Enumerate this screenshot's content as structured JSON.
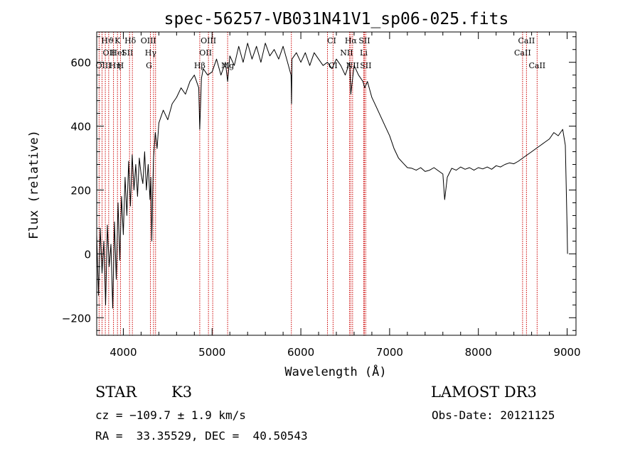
{
  "chart_data": {
    "type": "line",
    "title": "spec-56257-VB031N41V1_sp06-025.fits",
    "xlabel": "Wavelength (Å)",
    "ylabel": "Flux (relative)",
    "xlim": [
      3700,
      9100
    ],
    "ylim": [
      -255,
      695
    ],
    "xticks": [
      4000,
      5000,
      6000,
      7000,
      8000,
      9000
    ],
    "yticks": [
      -200,
      0,
      200,
      400,
      600
    ],
    "series": [
      {
        "name": "spectrum",
        "x": [
          3700,
          3720,
          3740,
          3760,
          3780,
          3800,
          3820,
          3840,
          3860,
          3880,
          3900,
          3920,
          3940,
          3960,
          3980,
          4000,
          4020,
          4040,
          4060,
          4080,
          4100,
          4120,
          4140,
          4160,
          4180,
          4200,
          4220,
          4240,
          4260,
          4280,
          4300,
          4310,
          4320,
          4330,
          4340,
          4360,
          4380,
          4400,
          4450,
          4500,
          4550,
          4600,
          4650,
          4700,
          4750,
          4800,
          4850,
          4861,
          4880,
          4900,
          4950,
          5000,
          5050,
          5100,
          5150,
          5175,
          5200,
          5250,
          5300,
          5350,
          5400,
          5450,
          5500,
          5550,
          5600,
          5650,
          5700,
          5750,
          5800,
          5850,
          5890,
          5895,
          5900,
          5950,
          6000,
          6050,
          6100,
          6150,
          6200,
          6250,
          6300,
          6350,
          6400,
          6450,
          6500,
          6550,
          6563,
          6600,
          6650,
          6700,
          6720,
          6750,
          6800,
          6850,
          6900,
          6950,
          7000,
          7050,
          7100,
          7150,
          7200,
          7250,
          7300,
          7350,
          7400,
          7450,
          7500,
          7550,
          7600,
          7620,
          7650,
          7700,
          7750,
          7800,
          7850,
          7900,
          7950,
          8000,
          8050,
          8100,
          8150,
          8200,
          8250,
          8300,
          8350,
          8400,
          8450,
          8500,
          8550,
          8600,
          8650,
          8700,
          8750,
          8800,
          8850,
          8900,
          8950,
          8980,
          9000,
          9005
        ],
        "y": [
          60,
          -130,
          80,
          -60,
          40,
          -160,
          90,
          -40,
          30,
          -170,
          100,
          -80,
          160,
          -20,
          180,
          60,
          240,
          120,
          290,
          150,
          310,
          200,
          280,
          180,
          300,
          250,
          220,
          320,
          200,
          280,
          170,
          240,
          40,
          180,
          300,
          380,
          330,
          410,
          450,
          420,
          470,
          490,
          520,
          500,
          540,
          560,
          520,
          390,
          550,
          580,
          560,
          570,
          610,
          560,
          600,
          540,
          620,
          590,
          650,
          600,
          660,
          610,
          650,
          600,
          660,
          620,
          640,
          610,
          650,
          600,
          560,
          470,
          610,
          630,
          600,
          630,
          590,
          630,
          610,
          590,
          600,
          580,
          610,
          590,
          560,
          600,
          500,
          590,
          560,
          540,
          520,
          540,
          490,
          460,
          430,
          400,
          370,
          330,
          300,
          285,
          270,
          268,
          262,
          270,
          258,
          262,
          270,
          260,
          250,
          170,
          240,
          268,
          262,
          272,
          265,
          270,
          262,
          270,
          266,
          272,
          265,
          276,
          272,
          280,
          285,
          282,
          290,
          300,
          310,
          320,
          330,
          340,
          350,
          360,
          380,
          370,
          390,
          340,
          80,
          0
        ]
      }
    ],
    "line_labels": [
      {
        "text": "Hϑ",
        "x": 3797,
        "row": 1,
        "dx": 3
      },
      {
        "text": "K",
        "x": 3934,
        "row": 1,
        "dx": 0
      },
      {
        "text": "Hδ",
        "x": 4102,
        "row": 1,
        "dx": -3
      },
      {
        "text": "OIII",
        "x": 4363,
        "row": 1,
        "dx": -10
      },
      {
        "text": "OIII",
        "x": 5007,
        "row": 1,
        "dx": -6
      },
      {
        "text": "CI",
        "x": 6300,
        "row": 1,
        "dx": 6
      },
      {
        "text": "Hα",
        "x": 6563,
        "row": 1,
        "dx": 0
      },
      {
        "text": "SII",
        "x": 6716,
        "row": 1,
        "dx": 0
      },
      {
        "text": "CaII",
        "x": 8542,
        "row": 1,
        "dx": 0
      },
      {
        "text": "OII",
        "x": 3727,
        "row": 2,
        "dx": 14
      },
      {
        "text": "HeI",
        "x": 3889,
        "row": 2,
        "dx": 6
      },
      {
        "text": "SII",
        "x": 4070,
        "row": 2,
        "dx": -3
      },
      {
        "text": "Hγ",
        "x": 4340,
        "row": 2,
        "dx": -4
      },
      {
        "text": "OII",
        "x": 4959,
        "row": 2,
        "dx": -4
      },
      {
        "text": "NII",
        "x": 6548,
        "row": 2,
        "dx": -4
      },
      {
        "text": "Li",
        "x": 6708,
        "row": 2,
        "dx": 0
      },
      {
        "text": "CaII",
        "x": 8498,
        "row": 2,
        "dx": 0
      },
      {
        "text": "OIII",
        "x": 3760,
        "row": 3,
        "dx": 2
      },
      {
        "text": "Hη",
        "x": 3835,
        "row": 3,
        "dx": 9
      },
      {
        "text": "H",
        "x": 3968,
        "row": 3,
        "dx": 0
      },
      {
        "text": "G",
        "x": 4305,
        "row": 3,
        "dx": -2
      },
      {
        "text": "Hβ",
        "x": 4861,
        "row": 3,
        "dx": 0
      },
      {
        "text": "Mg",
        "x": 5175,
        "row": 3,
        "dx": 0
      },
      {
        "text": "CI",
        "x": 6363,
        "row": 3,
        "dx": 0
      },
      {
        "text": "NII",
        "x": 6583,
        "row": 3,
        "dx": 0
      },
      {
        "text": "SII",
        "x": 6731,
        "row": 3,
        "dx": 0
      },
      {
        "text": "CaII",
        "x": 8662,
        "row": 3,
        "dx": 0
      }
    ],
    "line_markers": [
      3727,
      3760,
      3797,
      3835,
      3889,
      3934,
      3968,
      4070,
      4102,
      4305,
      4340,
      4363,
      4861,
      4959,
      5007,
      5175,
      5893,
      6300,
      6363,
      6548,
      6563,
      6583,
      6708,
      6716,
      6731,
      8498,
      8542,
      8662
    ]
  },
  "info": {
    "class_label": "STAR",
    "subclass": "K3",
    "survey": "LAMOST DR3",
    "redshift": "cz = −109.7 ± 1.9 km/s",
    "obs_date": "Obs-Date: 20121125",
    "coords": "RA =  33.35529, DEC =  40.50543"
  }
}
